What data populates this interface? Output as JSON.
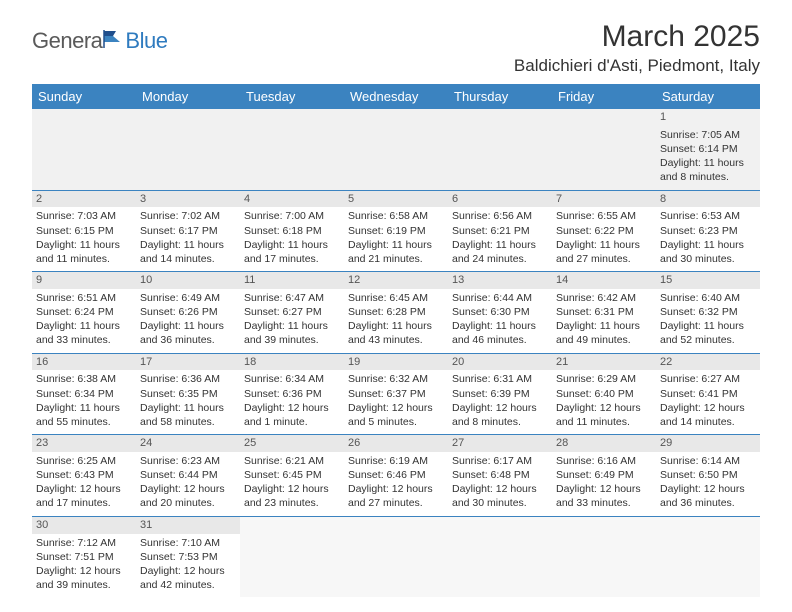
{
  "logo": {
    "part1": "Genera",
    "part2": "Blue"
  },
  "title": "March 2025",
  "location": "Baldichieri d'Asti, Piedmont, Italy",
  "colors": {
    "header_bg": "#3b83c0",
    "header_text": "#ffffff",
    "daynum_bg": "#e8e8e8",
    "row_divider": "#3b83c0",
    "logo_gray": "#5a5a5a",
    "logo_blue": "#2f7bbf"
  },
  "layout": {
    "table_type": "month-calendar",
    "columns": 7,
    "rows": 6,
    "first_weekday": "Sunday"
  },
  "weekdays": [
    "Sunday",
    "Monday",
    "Tuesday",
    "Wednesday",
    "Thursday",
    "Friday",
    "Saturday"
  ],
  "weeks": [
    [
      null,
      null,
      null,
      null,
      null,
      null,
      {
        "n": "1",
        "sr": "Sunrise: 7:05 AM",
        "ss": "Sunset: 6:14 PM",
        "dl": "Daylight: 11 hours and 8 minutes."
      }
    ],
    [
      {
        "n": "2",
        "sr": "Sunrise: 7:03 AM",
        "ss": "Sunset: 6:15 PM",
        "dl": "Daylight: 11 hours and 11 minutes."
      },
      {
        "n": "3",
        "sr": "Sunrise: 7:02 AM",
        "ss": "Sunset: 6:17 PM",
        "dl": "Daylight: 11 hours and 14 minutes."
      },
      {
        "n": "4",
        "sr": "Sunrise: 7:00 AM",
        "ss": "Sunset: 6:18 PM",
        "dl": "Daylight: 11 hours and 17 minutes."
      },
      {
        "n": "5",
        "sr": "Sunrise: 6:58 AM",
        "ss": "Sunset: 6:19 PM",
        "dl": "Daylight: 11 hours and 21 minutes."
      },
      {
        "n": "6",
        "sr": "Sunrise: 6:56 AM",
        "ss": "Sunset: 6:21 PM",
        "dl": "Daylight: 11 hours and 24 minutes."
      },
      {
        "n": "7",
        "sr": "Sunrise: 6:55 AM",
        "ss": "Sunset: 6:22 PM",
        "dl": "Daylight: 11 hours and 27 minutes."
      },
      {
        "n": "8",
        "sr": "Sunrise: 6:53 AM",
        "ss": "Sunset: 6:23 PM",
        "dl": "Daylight: 11 hours and 30 minutes."
      }
    ],
    [
      {
        "n": "9",
        "sr": "Sunrise: 6:51 AM",
        "ss": "Sunset: 6:24 PM",
        "dl": "Daylight: 11 hours and 33 minutes."
      },
      {
        "n": "10",
        "sr": "Sunrise: 6:49 AM",
        "ss": "Sunset: 6:26 PM",
        "dl": "Daylight: 11 hours and 36 minutes."
      },
      {
        "n": "11",
        "sr": "Sunrise: 6:47 AM",
        "ss": "Sunset: 6:27 PM",
        "dl": "Daylight: 11 hours and 39 minutes."
      },
      {
        "n": "12",
        "sr": "Sunrise: 6:45 AM",
        "ss": "Sunset: 6:28 PM",
        "dl": "Daylight: 11 hours and 43 minutes."
      },
      {
        "n": "13",
        "sr": "Sunrise: 6:44 AM",
        "ss": "Sunset: 6:30 PM",
        "dl": "Daylight: 11 hours and 46 minutes."
      },
      {
        "n": "14",
        "sr": "Sunrise: 6:42 AM",
        "ss": "Sunset: 6:31 PM",
        "dl": "Daylight: 11 hours and 49 minutes."
      },
      {
        "n": "15",
        "sr": "Sunrise: 6:40 AM",
        "ss": "Sunset: 6:32 PM",
        "dl": "Daylight: 11 hours and 52 minutes."
      }
    ],
    [
      {
        "n": "16",
        "sr": "Sunrise: 6:38 AM",
        "ss": "Sunset: 6:34 PM",
        "dl": "Daylight: 11 hours and 55 minutes."
      },
      {
        "n": "17",
        "sr": "Sunrise: 6:36 AM",
        "ss": "Sunset: 6:35 PM",
        "dl": "Daylight: 11 hours and 58 minutes."
      },
      {
        "n": "18",
        "sr": "Sunrise: 6:34 AM",
        "ss": "Sunset: 6:36 PM",
        "dl": "Daylight: 12 hours and 1 minute."
      },
      {
        "n": "19",
        "sr": "Sunrise: 6:32 AM",
        "ss": "Sunset: 6:37 PM",
        "dl": "Daylight: 12 hours and 5 minutes."
      },
      {
        "n": "20",
        "sr": "Sunrise: 6:31 AM",
        "ss": "Sunset: 6:39 PM",
        "dl": "Daylight: 12 hours and 8 minutes."
      },
      {
        "n": "21",
        "sr": "Sunrise: 6:29 AM",
        "ss": "Sunset: 6:40 PM",
        "dl": "Daylight: 12 hours and 11 minutes."
      },
      {
        "n": "22",
        "sr": "Sunrise: 6:27 AM",
        "ss": "Sunset: 6:41 PM",
        "dl": "Daylight: 12 hours and 14 minutes."
      }
    ],
    [
      {
        "n": "23",
        "sr": "Sunrise: 6:25 AM",
        "ss": "Sunset: 6:43 PM",
        "dl": "Daylight: 12 hours and 17 minutes."
      },
      {
        "n": "24",
        "sr": "Sunrise: 6:23 AM",
        "ss": "Sunset: 6:44 PM",
        "dl": "Daylight: 12 hours and 20 minutes."
      },
      {
        "n": "25",
        "sr": "Sunrise: 6:21 AM",
        "ss": "Sunset: 6:45 PM",
        "dl": "Daylight: 12 hours and 23 minutes."
      },
      {
        "n": "26",
        "sr": "Sunrise: 6:19 AM",
        "ss": "Sunset: 6:46 PM",
        "dl": "Daylight: 12 hours and 27 minutes."
      },
      {
        "n": "27",
        "sr": "Sunrise: 6:17 AM",
        "ss": "Sunset: 6:48 PM",
        "dl": "Daylight: 12 hours and 30 minutes."
      },
      {
        "n": "28",
        "sr": "Sunrise: 6:16 AM",
        "ss": "Sunset: 6:49 PM",
        "dl": "Daylight: 12 hours and 33 minutes."
      },
      {
        "n": "29",
        "sr": "Sunrise: 6:14 AM",
        "ss": "Sunset: 6:50 PM",
        "dl": "Daylight: 12 hours and 36 minutes."
      }
    ],
    [
      {
        "n": "30",
        "sr": "Sunrise: 7:12 AM",
        "ss": "Sunset: 7:51 PM",
        "dl": "Daylight: 12 hours and 39 minutes."
      },
      {
        "n": "31",
        "sr": "Sunrise: 7:10 AM",
        "ss": "Sunset: 7:53 PM",
        "dl": "Daylight: 12 hours and 42 minutes."
      },
      null,
      null,
      null,
      null,
      null
    ]
  ]
}
